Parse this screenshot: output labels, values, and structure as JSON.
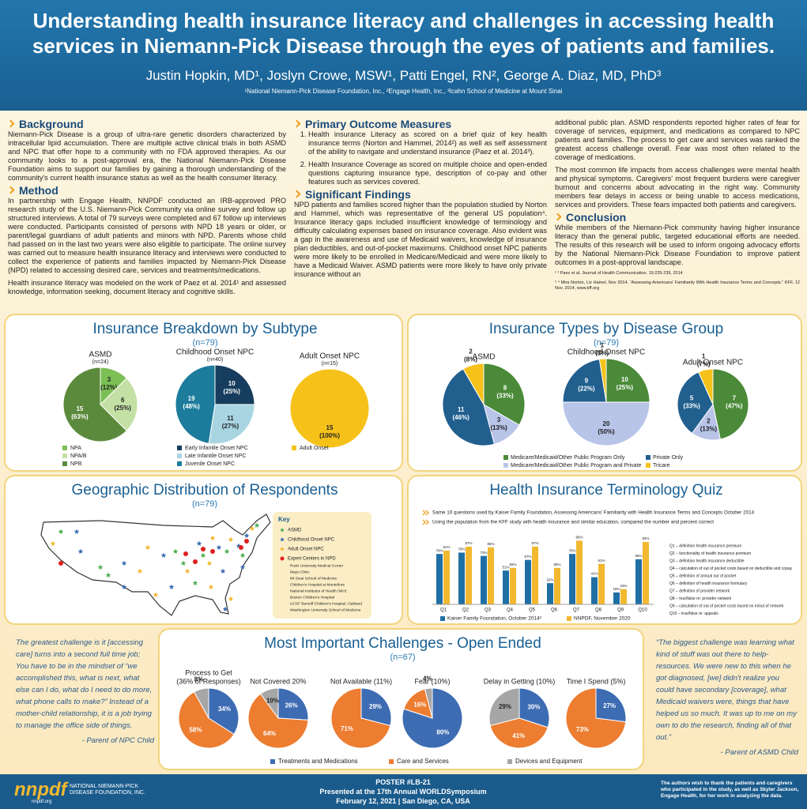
{
  "header": {
    "title": "Understanding health insurance literacy and challenges in accessing health services in Niemann-Pick Disease through the eyes of patients and families.",
    "authors": "Justin Hopkin, MD¹, Joslyn Crowe, MSW¹, Patti Engel, RN², George A. Diaz, MD, PhD³",
    "affiliations": "¹National Niemann-Pick Disease Foundation, Inc., ²Engage Health, Inc., ³Icahn School of Medicine at Mount Sinai"
  },
  "background": {
    "heading": "Background",
    "text": "Niemann-Pick Disease is a group of ultra-rare genetic disorders characterized by intracellular lipid accumulation. There are multiple active clinical trials in both ASMD and NPC that offer hope to a community with no FDA approved therapies. As our community looks to a post-approval era, the National Niemann-Pick Disease Foundation aims to support our families by gaining a thorough understanding of the community's current health insurance status as well as the health consumer literacy."
  },
  "method": {
    "heading": "Method",
    "paragraphs": [
      "In partnership with Engage Health, NNPDF conducted an IRB-approved PRO research study of the U.S. Niemann-Pick Community via online survey and follow up structured interviews. A total of 79 surveys were completed and 67 follow up interviews were conducted. Participants consisted of persons with NPD 18 years or older, or parent/legal guardians of adult patients and minors with NPD. Parents whose child had passed on in the last two years were also eligible to participate. The online survey was carried out to measure health insurance literacy and interviews were conducted to collect the experience of patients and families impacted by Niemann-Pick Disease (NPD) related to accessing desired care, services and treatments/medications.",
      "Health insurance literacy was modeled on the work of Paez et al. 2014¹ and assessed knowledge, information seeking, document literacy and cognitive skills."
    ]
  },
  "primary_outcomes": {
    "heading": "Primary Outcome Measures",
    "items": [
      "Health insurance Literacy as scored on a brief quiz of key health insurance terms (Norton and Hammel, 2014²) as well as self assessment of the ability to navigate and understand insurance (Paez et al. 2014³).",
      "Health Insurance Coverage as scored on multiple choice and open-ended questions capturing insurance type, description of co-pay and other features such as services covered."
    ]
  },
  "findings": {
    "heading": "Significant Findings",
    "paragraphs": [
      "NPD patients and families scored higher than the population studied by Norton and Hammel, which was representative of the general US population⁴. Insurance literacy gaps included insufficient knowledge of terminology and difficulty calculating expenses based on insurance coverage. Also evident was a gap in the awareness and use of Medicaid waivers, knowledge of insurance plan deductibles, and out-of-pocket maximums. Childhood onset NPC patients were more likely to be enrolled in Medicare/Medicaid and were more likely to have a Medicaid Waiver. ASMD patients were more likely to have only private insurance without an",
      "additional public plan. ASMD respondents reported higher rates of fear for coverage of services, equipment, and medications as compared to NPC patients and families. The process to get care and services was ranked the greatest access challenge overall. Fear was most often related to the coverage of medications.",
      "The most common life impacts from access challenges were mental health and physical symptoms. Caregivers' most frequent burdens were caregiver burnout and concerns about advocating in the right way. Community members fear delays in access or being unable to access medications, services and providers. These fears impacted both patients and caregivers."
    ]
  },
  "conclusion": {
    "heading": "Conclusion",
    "text": "While members of the Niemann-Pick community having higher insurance literacy than the general public, targeted educational efforts are needed. The results of this research will be used to inform ongoing advocacy efforts by the National Niemann-Pick Disease Foundation to improve patient outcomes in a post-approval landscape."
  },
  "references": [
    "¹ ³ Paez et al. Journal of Health Communication. 19:225-239, 2014",
    "² ⁴ Mira Norton, Liz Hamel, Nov 2014. “Assessing Americans' Familiarity With Health Insurance Terms and Concepts.” KFF, 12 Nov. 2014, www.kff.org"
  ],
  "chart_data": [
    {
      "type": "pie",
      "title": "Insurance Breakdown by Subtype",
      "subtitle": "(n=79)",
      "pies": [
        {
          "name": "ASMD",
          "n_label": "(n=24)",
          "categories": [
            "NPA",
            "NPA/B",
            "NPB"
          ],
          "colors": [
            "#7cbf55",
            "#c5e0a5",
            "#5b8a3c"
          ],
          "values": [
            3,
            6,
            15
          ],
          "percent_labels": [
            "(12%)",
            "(25%)",
            "(63%)"
          ]
        },
        {
          "name": "Childhood Onset NPC",
          "n_label": "(n=40)",
          "categories": [
            "Early Infantile Onset NPC",
            "Late Infantile Onset NPC",
            "Juvenile Onset NPC"
          ],
          "colors": [
            "#173d5e",
            "#a9d5e2",
            "#1d7c9c"
          ],
          "values": [
            10,
            11,
            19
          ],
          "percent_labels": [
            "(25%)",
            "(27%)",
            "(48%)"
          ]
        },
        {
          "name": "Adult Onset NPC",
          "n_label": "(n=15)",
          "categories": [
            "Adult Onset"
          ],
          "colors": [
            "#f6c21a"
          ],
          "values": [
            15
          ],
          "percent_labels": [
            "(100%)"
          ]
        }
      ]
    },
    {
      "type": "pie",
      "title": "Insurance Types by Disease Group",
      "subtitle": "(n=79)",
      "categories": [
        "Medicare/Medicaid/Other Public Program Only",
        "Private Only",
        "Medicare/Medicaid/Other Public Program and Private",
        "Tricare"
      ],
      "colors": [
        "#4a8a38",
        "#215f8e",
        "#b9c4e9",
        "#f6c21a"
      ],
      "pies": [
        {
          "name": "ASMD",
          "values": [
            8,
            11,
            3,
            2
          ],
          "percent_labels": [
            "(33%)",
            "(46%)",
            "(13%)",
            "(8%)"
          ]
        },
        {
          "name": "Childhood Onset NPC",
          "values": [
            10,
            9,
            20,
            1
          ],
          "percent_labels": [
            "(25%)",
            "(22%)",
            "(50%)",
            "(3%)"
          ]
        },
        {
          "name": "Adult Onset NPC",
          "values": [
            7,
            5,
            2,
            1
          ],
          "percent_labels": [
            "(47%)",
            "(33%)",
            "(13%)",
            "(7%)"
          ]
        }
      ]
    },
    {
      "type": "bar",
      "title": "Health Insurance Terminology Quiz",
      "notes": [
        "Same 10 questions used by Kaiser Family Foundation, Assessing Americans' Familiarity with Health Insurance Terms and Concepts October 2014",
        "Using the population from the KFF study with health insurance and similar education, compared the number and percent correct"
      ],
      "categories": [
        "Q1",
        "Q2",
        "Q3",
        "Q4",
        "Q5",
        "Q6",
        "Q7",
        "Q8",
        "Q9",
        "Q10"
      ],
      "ylim": [
        0,
        100
      ],
      "series": [
        {
          "name": "Kaiser Family Foundation, October 2014²",
          "color": "#1f6fa5",
          "values": [
            76,
            78,
            73,
            51,
            67,
            32,
            76,
            41,
            18,
            68
          ],
          "value_labels": [
            "76%",
            "78%",
            "73%",
            "51%",
            "67%",
            "32%",
            "76%",
            "41%",
            "18%",
            "68%"
          ]
        },
        {
          "name": "NNPDF, November 2020",
          "color": "#f2b830",
          "values": [
            81,
            87,
            86,
            55,
            87,
            55,
            96,
            61,
            23,
            94
          ],
          "value_labels": [
            "81%",
            "87%",
            "86%",
            "55%",
            "87%",
            "55%",
            "96%",
            "61%",
            "23%",
            "94%"
          ]
        }
      ],
      "questions": [
        "Q1 – definition health insurance premium",
        "Q2 – functionality of health insurance premium",
        "Q3 – definition health insurance deductible",
        "Q4 – calculation of out of pocket costs based on deductible and copay",
        "Q5 – definition of annual out of pocket",
        "Q6 – definition of health insurance formulary",
        "Q7 – definition of provider network",
        "Q8 – true/false re: provider network",
        "Q9 – calculation of out of pocket costs based on in/out of network",
        "Q10 – true/false re: appeals"
      ]
    },
    {
      "type": "pie",
      "title": "Most Important Challenges - Open Ended",
      "subtitle": "(n=67)",
      "categories": [
        "Treatments and Medications",
        "Care and Services",
        "Devices and Equipment"
      ],
      "colors": [
        "#3d6cb3",
        "#ed7d31",
        "#a6a6a6"
      ],
      "pies": [
        {
          "name": "Process to Get",
          "note": "(36% of Responses)",
          "values": [
            34,
            58,
            8
          ],
          "value_labels": [
            "34%",
            "58%",
            "8%"
          ]
        },
        {
          "name": "Not Covered 20%",
          "values": [
            26,
            64,
            10
          ],
          "value_labels": [
            "26%",
            "64%",
            "10%"
          ]
        },
        {
          "name": "Not Available (11%)",
          "values": [
            29,
            71,
            null
          ],
          "value_labels": [
            "29%",
            "71%",
            null
          ]
        },
        {
          "name": "Fear (10%)",
          "values": [
            80,
            16,
            4
          ],
          "value_labels": [
            "80%",
            "16%",
            "4%"
          ]
        },
        {
          "name": "Delay in Getting (10%)",
          "values": [
            30,
            41,
            29
          ],
          "value_labels": [
            "30%",
            "41%",
            "29%"
          ]
        },
        {
          "name": "Time I Spend (5%)",
          "values": [
            27,
            73,
            null
          ],
          "value_labels": [
            "27%",
            "73%",
            null
          ]
        }
      ]
    }
  ],
  "map": {
    "title": "Geographic Distribution of Respondents",
    "subtitle": "(n=79)",
    "key_title": "Key",
    "key": [
      {
        "label": "ASMD",
        "color": "#4caf50"
      },
      {
        "label": "Childhood Onset NPC",
        "color": "#3d6cb3"
      },
      {
        "label": "Adult Onset NPC",
        "color": "#f2b830"
      },
      {
        "label": "Expert Centers in NPD",
        "color": "#e0201f"
      }
    ],
    "centers": [
      "Rush University Medical Center",
      "Mayo Clinic",
      "Mt Sinai School of Medicine",
      "Children's Hospital at Montefiore",
      "National Institutes of Health (NIH)",
      "Boston Children's Hospital",
      "UCSF Benioff Children's Hospital, Oakland",
      "Washington University School of Medicine"
    ]
  },
  "quotes": [
    {
      "text": "The greatest challenge is it [accessing care] turns into a second full time job; You have to be in the mindset of “we accomplished this, what is next, what else can I do, what do I need to do more, what phone calls to make?” Instead of a mother-child relationship, it is a job trying to manage the office side of things.",
      "attribution": "- Parent of NPC Child"
    },
    {
      "text": "“The biggest challenge was learning what kind of stuff was out there to help- resources. We were new to this when he got diagnosed, [we] didn't realize you could have secondary [coverage], what Medicaid waivers were, things that have helped us so much. It was up to me on my own to do the research, finding all of that out.”",
      "attribution": "- Parent of ASMD Child"
    }
  ],
  "footer": {
    "logo": "nnpdf",
    "org": "NATIONAL NIEMANN-PICK DISEASE FOUNDATION, INC.",
    "url": "nnpdf.org",
    "poster": "POSTER #LB-21",
    "event": "Presented at the 17th Annual WORLDSymposium",
    "date": "February 12, 2021 | San Diego, CA, USA",
    "acknowledgement": "The authors wish to thank the patients and caregivers who participated in the study, as well as Skyler Jackson, Engage Health, for her work in analyzing the data."
  }
}
